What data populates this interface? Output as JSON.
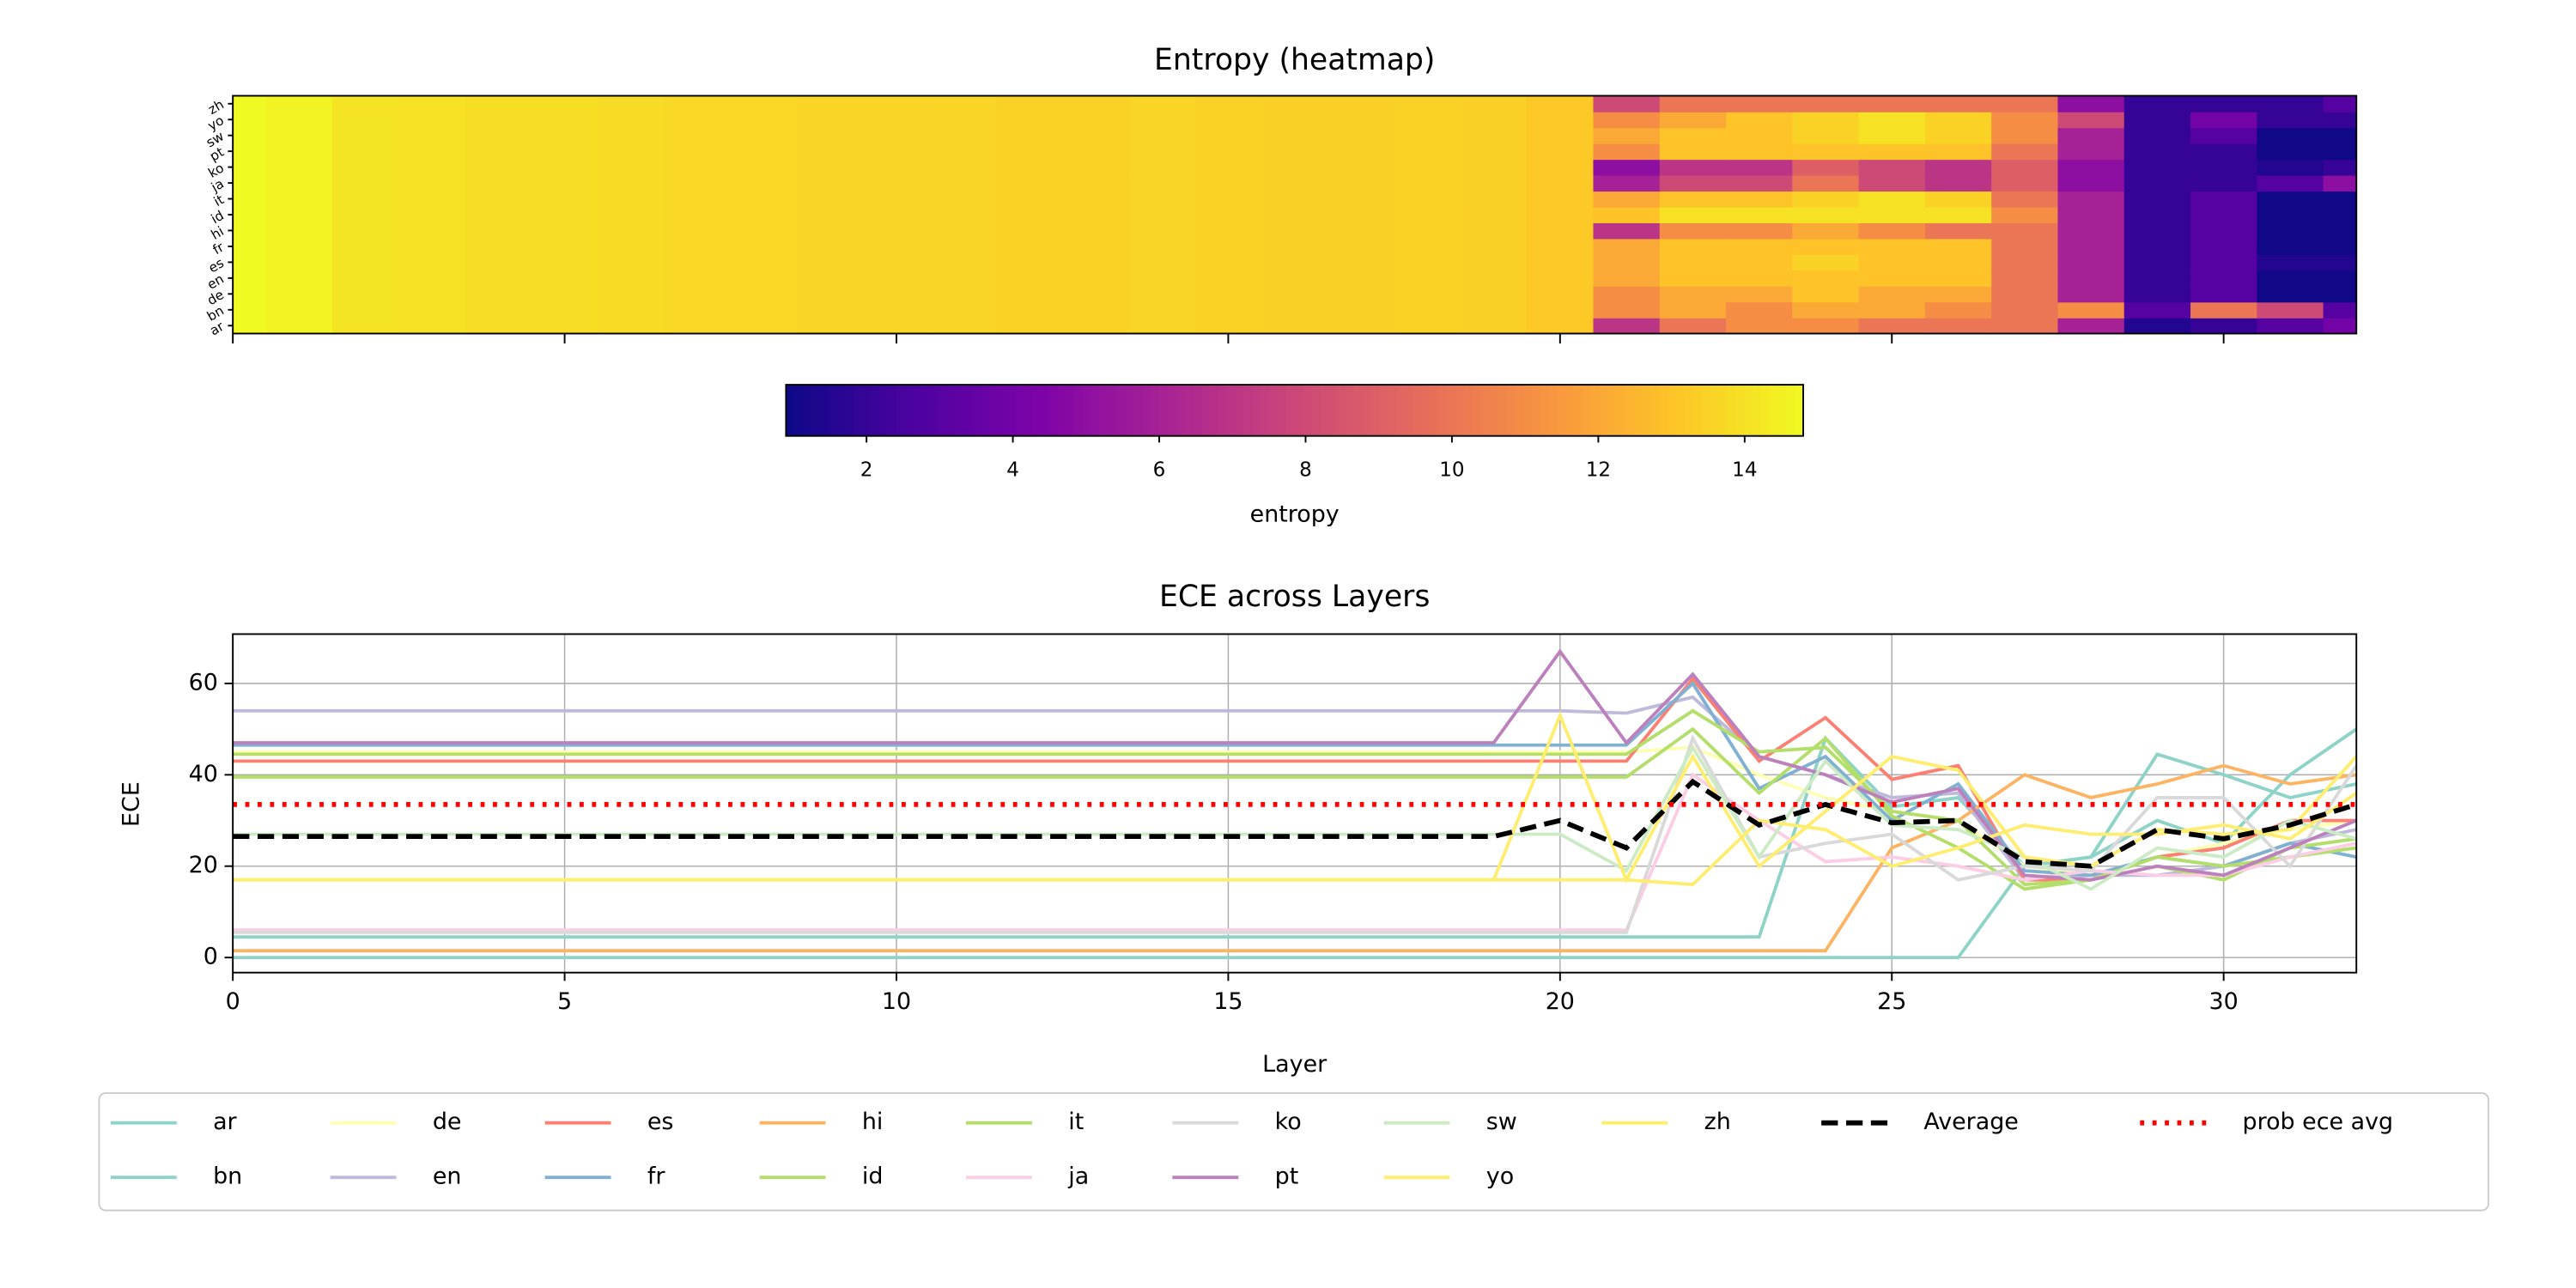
{
  "chart_data": [
    {
      "type": "heatmap",
      "title": "Entropy (heatmap)",
      "cmap": "plasma",
      "categories": [
        "ar",
        "bn",
        "de",
        "en",
        "es",
        "fr",
        "hi",
        "id",
        "it",
        "ja",
        "ko",
        "pt",
        "sw",
        "yo",
        "zh"
      ],
      "xlim": [
        0,
        32
      ],
      "xticks": [
        0,
        5,
        10,
        15,
        20,
        25,
        30
      ],
      "values": [
        [
          14.8,
          14.6,
          14.1,
          14.0,
          13.9,
          13.9,
          13.8,
          13.7,
          13.7,
          13.6,
          13.6,
          13.6,
          13.5,
          13.5,
          13.6,
          13.5,
          13.4,
          13.4,
          13.5,
          13.4,
          13.2,
          7,
          10,
          11,
          11,
          10,
          10,
          10,
          6,
          1.5,
          2,
          3,
          4
        ],
        [
          14.8,
          14.6,
          14.1,
          14.0,
          13.9,
          13.9,
          13.8,
          13.7,
          13.7,
          13.6,
          13.6,
          13.6,
          13.5,
          13.5,
          13.6,
          13.5,
          13.4,
          13.4,
          13.5,
          13.4,
          13.2,
          11,
          12,
          11,
          12,
          12,
          11,
          10,
          11,
          3,
          10,
          8,
          3
        ],
        [
          14.8,
          14.6,
          14.1,
          14.0,
          13.9,
          13.9,
          13.8,
          13.7,
          13.7,
          13.6,
          13.6,
          13.6,
          13.5,
          13.5,
          13.6,
          13.5,
          13.4,
          13.4,
          13.5,
          13.4,
          13.2,
          11,
          12,
          12,
          13,
          12,
          12,
          10,
          6,
          2,
          3,
          1,
          1
        ],
        [
          14.8,
          14.6,
          14.1,
          14.0,
          13.9,
          13.9,
          13.8,
          13.7,
          13.7,
          13.6,
          13.6,
          13.6,
          13.5,
          13.5,
          13.6,
          13.5,
          13.4,
          13.4,
          13.5,
          13.4,
          13.2,
          12,
          13,
          13,
          13,
          13,
          13,
          10,
          6,
          2,
          3,
          1,
          1
        ],
        [
          14.8,
          14.6,
          14.1,
          14.0,
          13.9,
          13.9,
          13.8,
          13.7,
          13.7,
          13.6,
          13.6,
          13.6,
          13.5,
          13.5,
          13.6,
          13.5,
          13.4,
          13.4,
          13.5,
          13.4,
          13.2,
          12,
          13,
          13,
          13.5,
          13,
          13,
          10,
          6,
          2,
          3,
          1.5,
          1.5
        ],
        [
          14.8,
          14.6,
          14.1,
          14.0,
          13.9,
          13.9,
          13.8,
          13.7,
          13.7,
          13.6,
          13.6,
          13.6,
          13.5,
          13.5,
          13.6,
          13.5,
          13.4,
          13.4,
          13.5,
          13.4,
          13.2,
          12,
          13,
          13,
          13,
          13,
          13,
          10,
          6,
          2,
          3,
          1,
          1
        ],
        [
          14.8,
          14.6,
          14.1,
          14.0,
          13.9,
          13.9,
          13.8,
          13.7,
          13.7,
          13.6,
          13.6,
          13.6,
          13.5,
          13.5,
          13.6,
          13.5,
          13.4,
          13.4,
          13.5,
          13.4,
          13.2,
          7,
          11,
          11,
          12,
          11,
          10,
          10,
          6,
          2,
          3,
          1,
          1
        ],
        [
          14.8,
          14.6,
          14.1,
          14.0,
          13.9,
          13.9,
          13.8,
          13.7,
          13.7,
          13.6,
          13.6,
          13.6,
          13.5,
          13.5,
          13.6,
          13.5,
          13.4,
          13.4,
          13.5,
          13.4,
          13.2,
          13,
          14,
          14,
          14,
          14,
          14,
          11,
          6,
          2,
          3,
          1,
          1
        ],
        [
          14.8,
          14.6,
          14.1,
          14.0,
          13.9,
          13.9,
          13.8,
          13.7,
          13.7,
          13.6,
          13.6,
          13.6,
          13.5,
          13.5,
          13.6,
          13.5,
          13.4,
          13.4,
          13.5,
          13.4,
          13.2,
          12,
          13,
          13,
          13.5,
          14,
          13.5,
          10,
          6,
          2,
          3,
          1,
          1
        ],
        [
          14.8,
          14.6,
          14.1,
          14.0,
          13.9,
          13.9,
          13.8,
          13.7,
          13.7,
          13.6,
          13.6,
          13.6,
          13.5,
          13.5,
          13.6,
          13.5,
          13.4,
          13.4,
          13.5,
          13.4,
          13.2,
          6,
          8,
          8,
          10,
          8,
          7,
          9,
          5,
          2,
          2,
          3,
          5
        ],
        [
          14.8,
          14.6,
          14.1,
          14.0,
          13.9,
          13.9,
          13.8,
          13.7,
          13.7,
          13.6,
          13.6,
          13.6,
          13.5,
          13.5,
          13.6,
          13.5,
          13.4,
          13.4,
          13.5,
          13.4,
          13.2,
          5,
          7,
          7,
          9,
          8,
          7,
          9,
          5,
          2,
          2,
          1.5,
          2
        ],
        [
          14.8,
          14.6,
          14.1,
          14.0,
          13.9,
          13.9,
          13.8,
          13.7,
          13.7,
          13.6,
          13.6,
          13.6,
          13.5,
          13.5,
          13.6,
          13.5,
          13.4,
          13.4,
          13.5,
          13.4,
          13.2,
          11,
          13,
          13,
          13,
          13,
          13,
          10,
          6,
          2,
          2,
          1,
          1
        ],
        [
          14.8,
          14.6,
          14.1,
          14.0,
          13.9,
          13.9,
          13.8,
          13.7,
          13.7,
          13.6,
          13.6,
          13.6,
          13.5,
          13.5,
          13.6,
          13.5,
          13.4,
          13.4,
          13.5,
          13.4,
          13.2,
          12,
          13,
          13,
          13.5,
          14,
          13.5,
          11,
          6,
          2,
          3,
          1,
          1
        ],
        [
          14.8,
          14.6,
          14.1,
          14.0,
          13.9,
          13.9,
          13.8,
          13.7,
          13.7,
          13.6,
          13.6,
          13.6,
          13.5,
          13.5,
          13.6,
          13.5,
          13.4,
          13.4,
          13.5,
          13.4,
          13.2,
          11,
          12,
          13,
          13.5,
          14,
          13.5,
          11,
          8,
          2,
          4,
          2,
          2
        ],
        [
          14.8,
          14.6,
          14.1,
          14.0,
          13.9,
          13.9,
          13.8,
          13.7,
          13.7,
          13.6,
          13.6,
          13.6,
          13.5,
          13.5,
          13.6,
          13.5,
          13.4,
          13.4,
          13.5,
          13.4,
          13.2,
          8,
          10,
          10,
          10,
          10,
          10,
          10,
          5,
          2,
          2,
          2,
          3
        ]
      ],
      "colorbar": {
        "label": "entropy",
        "lim": [
          0.9,
          14.8
        ],
        "ticks": [
          2,
          4,
          6,
          8,
          10,
          12,
          14
        ]
      }
    },
    {
      "type": "line",
      "title": "ECE across Layers",
      "x_label": "Layer",
      "y_label": "ECE",
      "x": [
        0,
        1,
        2,
        3,
        4,
        5,
        6,
        7,
        8,
        9,
        10,
        11,
        12,
        13,
        14,
        15,
        16,
        17,
        18,
        19,
        20,
        21,
        22,
        23,
        24,
        25,
        26,
        27,
        28,
        29,
        30,
        31,
        32
      ],
      "xlim": [
        0,
        32
      ],
      "xticks": [
        0,
        5,
        10,
        15,
        20,
        25,
        30
      ],
      "ylim": [
        -3.3,
        70.8
      ],
      "yticks": [
        0,
        20,
        40,
        60
      ],
      "grid": true,
      "series": [
        {
          "name": "ar",
          "color": "#8dd3c7",
          "values": [
            4.5,
            4.5,
            4.5,
            4.5,
            4.5,
            4.5,
            4.5,
            4.5,
            4.5,
            4.5,
            4.5,
            4.5,
            4.5,
            4.5,
            4.5,
            4.5,
            4.5,
            4.5,
            4.5,
            4.5,
            4.5,
            4.5,
            4.5,
            4.5,
            48,
            33,
            35,
            20,
            22,
            30,
            25,
            40,
            50
          ]
        },
        {
          "name": "bn",
          "color": "#8dd3c7",
          "values": [
            0,
            0,
            0,
            0,
            0,
            0,
            0,
            0,
            0,
            0,
            0,
            0,
            0,
            0,
            0,
            0,
            0,
            0,
            0,
            0,
            0,
            0,
            0,
            0,
            0,
            0,
            0,
            20,
            22,
            44.5,
            40,
            35,
            38
          ]
        },
        {
          "name": "de",
          "color": "#ffffb3",
          "values": [
            45,
            45,
            45,
            45,
            45,
            45,
            45,
            45,
            45,
            45,
            45,
            45,
            45,
            45,
            45,
            45,
            45,
            45,
            45,
            45,
            45,
            45,
            46,
            40,
            35,
            32,
            30,
            20,
            18,
            22,
            25,
            28,
            30
          ]
        },
        {
          "name": "en",
          "color": "#bebada",
          "values": [
            54,
            54,
            54,
            54,
            54,
            54,
            54,
            54,
            54,
            54,
            54,
            54,
            54,
            54,
            54,
            54,
            54,
            54,
            54,
            54,
            54,
            53.5,
            57,
            44,
            40,
            35,
            36,
            17,
            18,
            18,
            20,
            25,
            28
          ]
        },
        {
          "name": "es",
          "color": "#fb8072",
          "values": [
            43,
            43,
            43,
            43,
            43,
            43,
            43,
            43,
            43,
            43,
            43,
            43,
            43,
            43,
            43,
            43,
            43,
            43,
            43,
            43,
            43,
            43,
            61,
            43,
            52.5,
            39,
            42,
            17,
            17,
            22,
            24,
            30,
            30
          ]
        },
        {
          "name": "fr",
          "color": "#80b1d3",
          "values": [
            46.5,
            46.5,
            46.5,
            46.5,
            46.5,
            46.5,
            46.5,
            46.5,
            46.5,
            46.5,
            46.5,
            46.5,
            46.5,
            46.5,
            46.5,
            46.5,
            46.5,
            46.5,
            46.5,
            46.5,
            46.5,
            46.5,
            60,
            37,
            44,
            30,
            38,
            19,
            18,
            22,
            20,
            25,
            22
          ]
        },
        {
          "name": "hi",
          "color": "#fdb462",
          "values": [
            1.5,
            1.5,
            1.5,
            1.5,
            1.5,
            1.5,
            1.5,
            1.5,
            1.5,
            1.5,
            1.5,
            1.5,
            1.5,
            1.5,
            1.5,
            1.5,
            1.5,
            1.5,
            1.5,
            1.5,
            1.5,
            1.5,
            1.5,
            1.5,
            1.5,
            24,
            30,
            40,
            35,
            38,
            42,
            38,
            40
          ]
        },
        {
          "name": "id",
          "color": "#b3de69",
          "values": [
            39.5,
            39.5,
            39.5,
            39.5,
            39.5,
            39.5,
            39.5,
            39.5,
            39.5,
            39.5,
            39.5,
            39.5,
            39.5,
            39.5,
            39.5,
            39.5,
            39.5,
            39.5,
            39.5,
            39.5,
            39.5,
            39.5,
            50,
            36,
            48,
            31,
            24,
            15,
            17,
            20,
            17,
            24,
            26
          ]
        },
        {
          "name": "it",
          "color": "#b3de69",
          "values": [
            44.5,
            44.5,
            44.5,
            44.5,
            44.5,
            44.5,
            44.5,
            44.5,
            44.5,
            44.5,
            44.5,
            44.5,
            44.5,
            44.5,
            44.5,
            44.5,
            44.5,
            44.5,
            44.5,
            44.5,
            44.5,
            44.5,
            54,
            45,
            46,
            32,
            30,
            16,
            17,
            22,
            20,
            22,
            24
          ]
        },
        {
          "name": "ja",
          "color": "#fccde5",
          "values": [
            6,
            6,
            6,
            6,
            6,
            6,
            6,
            6,
            6,
            6,
            6,
            6,
            6,
            6,
            6,
            6,
            6,
            6,
            6,
            6,
            6,
            6,
            40,
            30,
            21,
            22,
            20,
            17,
            19,
            18,
            18,
            22,
            25
          ]
        },
        {
          "name": "ko",
          "color": "#d9d9d9",
          "values": [
            5.5,
            5.5,
            5.5,
            5.5,
            5.5,
            5.5,
            5.5,
            5.5,
            5.5,
            5.5,
            5.5,
            5.5,
            5.5,
            5.5,
            5.5,
            5.5,
            5.5,
            5.5,
            5.5,
            5.5,
            5.5,
            5.5,
            48,
            22,
            25,
            27,
            17,
            20,
            19,
            35,
            35,
            20,
            42
          ]
        },
        {
          "name": "pt",
          "color": "#bc80bd",
          "values": [
            47,
            47,
            47,
            47,
            47,
            47,
            47,
            47,
            47,
            47,
            47,
            47,
            47,
            47,
            47,
            47,
            47,
            47,
            47,
            47,
            67,
            47,
            62,
            44,
            40,
            34,
            37,
            18,
            17,
            20,
            18,
            24,
            30
          ]
        },
        {
          "name": "sw",
          "color": "#ccebc5",
          "values": [
            27,
            27,
            27,
            27,
            27,
            27,
            27,
            27,
            27,
            27,
            27,
            27,
            27,
            27,
            27,
            27,
            27,
            27,
            27,
            27,
            27,
            19,
            46,
            22,
            43,
            29,
            28,
            22,
            15,
            24,
            22,
            30,
            26
          ]
        },
        {
          "name": "yo",
          "color": "#ffed6f",
          "values": [
            17,
            17,
            17,
            17,
            17,
            17,
            17,
            17,
            17,
            17,
            17,
            17,
            17,
            17,
            17,
            17,
            17,
            17,
            17,
            17,
            53,
            17,
            44,
            20,
            32,
            44,
            41,
            22,
            20,
            28,
            27,
            28,
            44
          ]
        },
        {
          "name": "zh",
          "color": "#ffed6f",
          "values": [
            17,
            17,
            17,
            17,
            17,
            17,
            17,
            17,
            17,
            17,
            17,
            17,
            17,
            17,
            17,
            17,
            17,
            17,
            17,
            17,
            17,
            17,
            16,
            30,
            28,
            20,
            24,
            29,
            27,
            27,
            29,
            26,
            36
          ]
        },
        {
          "name": "Average",
          "color": "#000000",
          "linestyle": "dashed",
          "values": [
            26.5,
            26.5,
            26.5,
            26.5,
            26.5,
            26.5,
            26.5,
            26.5,
            26.5,
            26.5,
            26.5,
            26.5,
            26.5,
            26.5,
            26.5,
            26.5,
            26.5,
            26.5,
            26.5,
            26.5,
            30,
            24,
            38.5,
            29,
            33.5,
            29.5,
            30,
            21,
            20,
            28,
            26,
            29,
            33.5
          ]
        }
      ],
      "reference_line": {
        "name": "prob ece avg",
        "color": "#ff0000",
        "linestyle": "dotted",
        "value": 33.5
      }
    }
  ]
}
